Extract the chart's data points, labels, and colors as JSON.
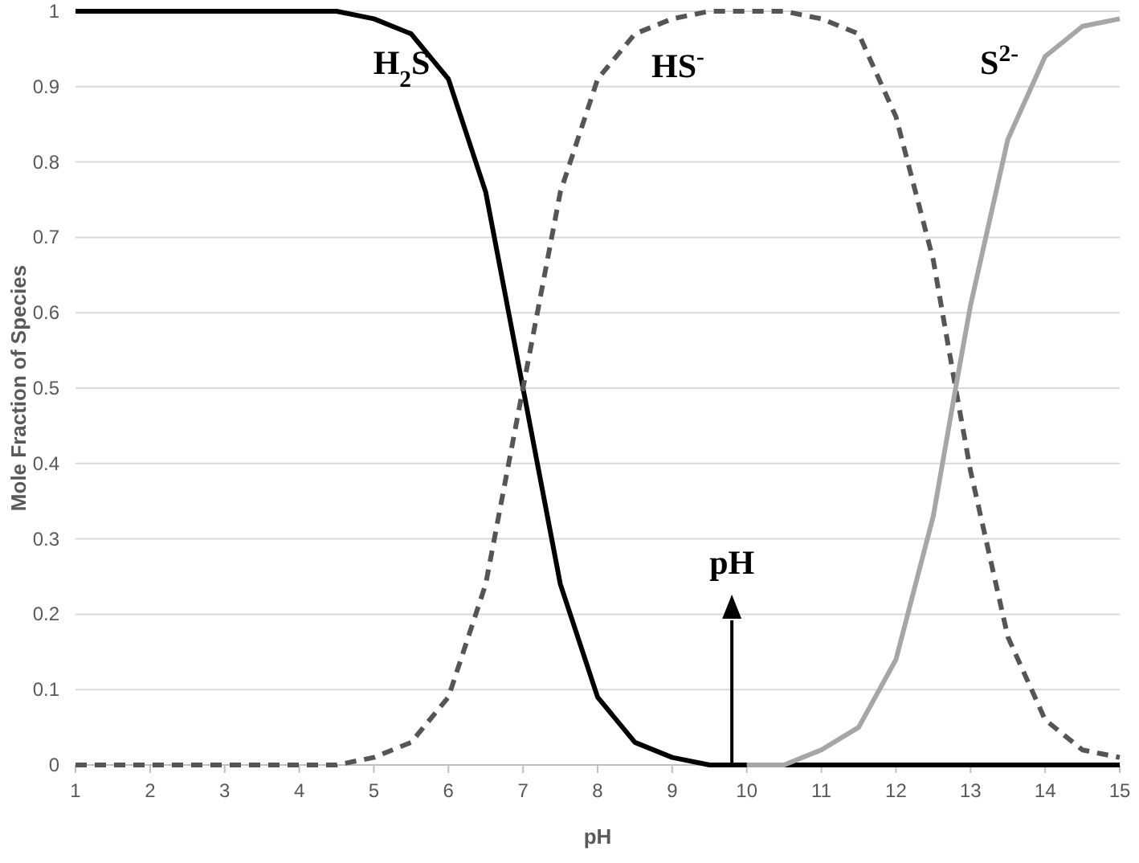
{
  "chart_data": {
    "type": "line",
    "xlabel": "pH",
    "ylabel": "Mole Fraction of Species",
    "xlim": [
      1,
      15
    ],
    "xticks": [
      1,
      2,
      3,
      4,
      5,
      6,
      7,
      8,
      9,
      10,
      11,
      12,
      13,
      14,
      15
    ],
    "ylim": [
      0,
      1
    ],
    "yticks": [
      0,
      0.1,
      0.2,
      0.3,
      0.4,
      0.5,
      0.6,
      0.7,
      0.8,
      0.9,
      1
    ],
    "grid": "y",
    "marker": "none",
    "series": [
      {
        "name": "H$_{2}$S",
        "color": "#000000",
        "line_style": "solid",
        "x": [
          1,
          2,
          3,
          4,
          4.5,
          5,
          5.5,
          6,
          6.5,
          7,
          7.5,
          8,
          8.5,
          9,
          9.5,
          10,
          11,
          12,
          13,
          14,
          15
        ],
        "values": [
          1,
          1,
          1,
          1,
          1,
          0.99,
          0.97,
          0.91,
          0.76,
          0.5,
          0.24,
          0.09,
          0.03,
          0.01,
          0,
          0,
          0,
          0,
          0,
          0,
          0
        ]
      },
      {
        "name": "HS$^{-}$",
        "color": "#555555",
        "line_style": "dashed",
        "x": [
          1,
          2,
          3,
          4,
          4.5,
          5,
          5.5,
          6,
          6.5,
          7,
          7.5,
          8,
          8.5,
          9,
          9.5,
          10,
          10.5,
          11,
          11.5,
          12,
          12.5,
          12.8,
          13,
          13.5,
          14,
          14.5,
          15
        ],
        "values": [
          0,
          0,
          0,
          0,
          0,
          0.01,
          0.03,
          0.09,
          0.24,
          0.5,
          0.76,
          0.91,
          0.97,
          0.99,
          1,
          1,
          1,
          0.99,
          0.97,
          0.86,
          0.67,
          0.5,
          0.39,
          0.17,
          0.06,
          0.02,
          0.01
        ]
      },
      {
        "name": "S$^{2-}$",
        "color": "#a6a6a6",
        "line_style": "solid",
        "x": [
          10,
          10.5,
          11,
          11.5,
          12,
          12.5,
          12.8,
          13,
          13.5,
          14,
          14.5,
          15
        ],
        "values": [
          0,
          0,
          0.02,
          0.05,
          0.14,
          0.33,
          0.5,
          0.61,
          0.83,
          0.94,
          0.98,
          0.99
        ]
      }
    ],
    "annotations": [
      {
        "text": "pH",
        "x": 9.8,
        "y": 0
      }
    ]
  }
}
